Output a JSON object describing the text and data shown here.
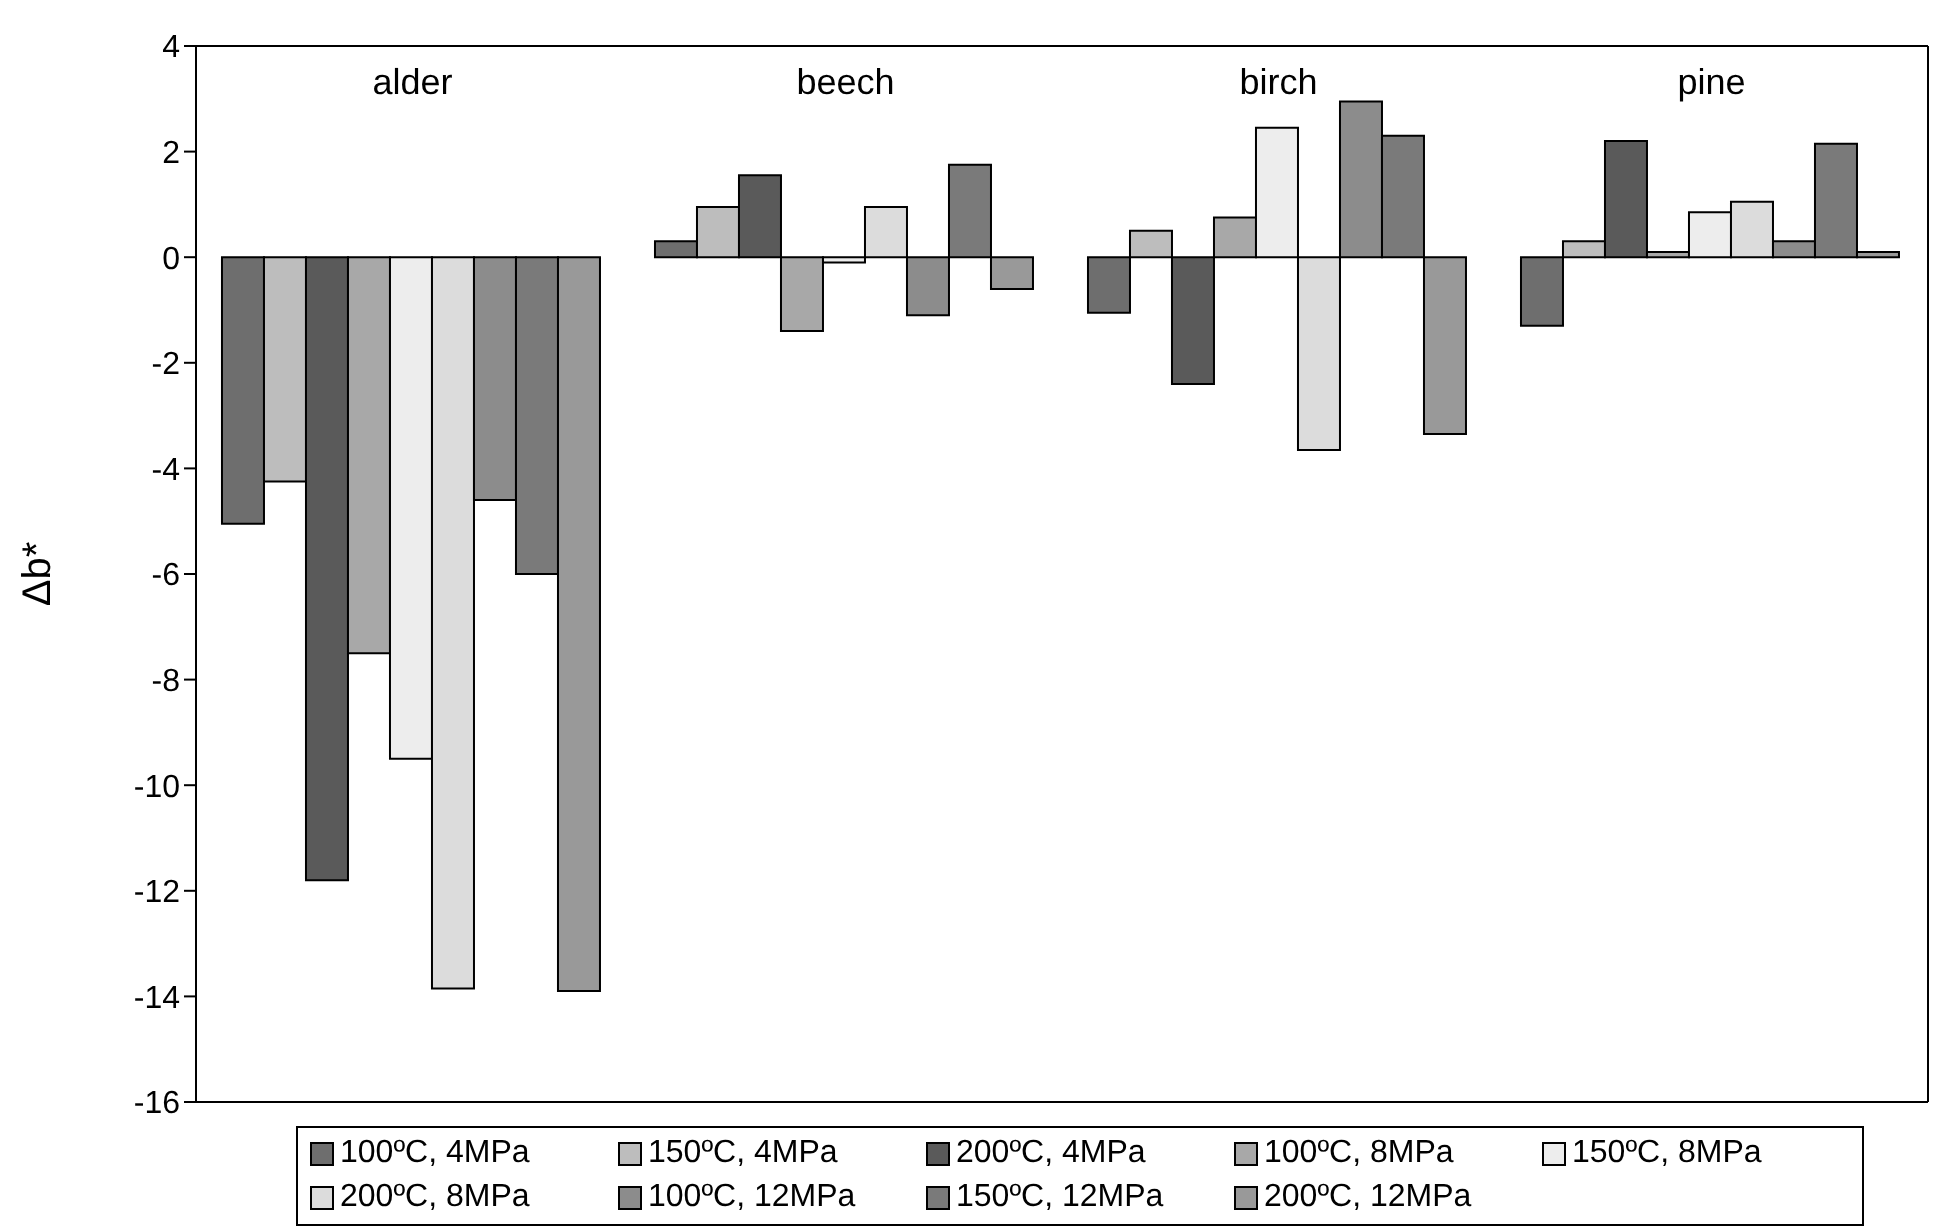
{
  "chart_data": {
    "type": "bar",
    "ylabel": "Δb*",
    "categories": [
      "alder",
      "beech",
      "birch",
      "pine"
    ],
    "series": [
      {
        "name": "100ºC, 4MPa",
        "color": "#6e6e6e",
        "values": [
          -5.05,
          0.3,
          -1.05,
          -1.3
        ]
      },
      {
        "name": "150ºC, 4MPa",
        "color": "#bdbdbd",
        "values": [
          -4.25,
          0.95,
          0.5,
          0.3
        ]
      },
      {
        "name": "200ºC, 4MPa",
        "color": "#5a5a5a",
        "values": [
          -11.8,
          1.55,
          -2.4,
          2.2
        ]
      },
      {
        "name": "100ºC, 8MPa",
        "color": "#a8a8a8",
        "values": [
          -7.5,
          -1.4,
          0.75,
          0.1
        ]
      },
      {
        "name": "150ºC, 8MPa",
        "color": "#ededed",
        "values": [
          -9.5,
          -0.1,
          2.45,
          0.85
        ]
      },
      {
        "name": "200ºC, 8MPa",
        "color": "#dcdcdc",
        "values": [
          -13.85,
          0.95,
          -3.65,
          1.05
        ]
      },
      {
        "name": "100ºC, 12MPa",
        "color": "#8c8c8c",
        "values": [
          -4.6,
          -1.1,
          2.95,
          0.3
        ]
      },
      {
        "name": "150ºC, 12MPa",
        "color": "#7a7a7a",
        "values": [
          -6.0,
          1.75,
          2.3,
          2.15
        ]
      },
      {
        "name": "200ºC, 12MPa",
        "color": "#999999",
        "values": [
          -13.9,
          -0.6,
          -3.35,
          0.1
        ]
      }
    ],
    "ylim": [
      -16,
      4
    ],
    "yticks": [
      -16,
      -14,
      -12,
      -10,
      -8,
      -6,
      -4,
      -2,
      0,
      2,
      4
    ],
    "grid": false,
    "legend": "bottom"
  }
}
